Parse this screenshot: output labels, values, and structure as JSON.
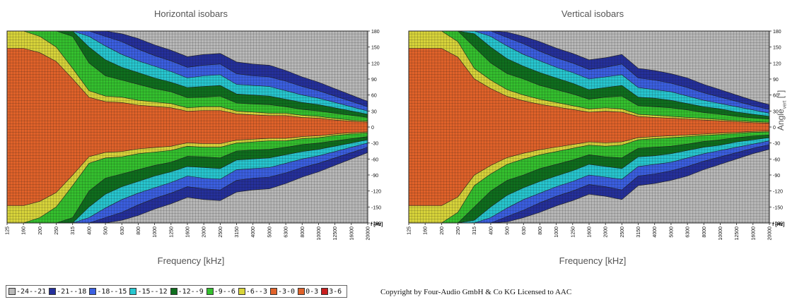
{
  "chart_data": [
    {
      "type": "heatmap",
      "title": "Horizontal isobars",
      "xlabel": "Frequency [kHz]",
      "x_unit_label": "f [Hz]",
      "x_ticks": [
        "125",
        "160",
        "200",
        "250",
        "315",
        "400",
        "500",
        "630",
        "800",
        "1000",
        "1250",
        "1600",
        "2000",
        "2500",
        "3150",
        "4000",
        "5000",
        "6300",
        "8000",
        "10000",
        "12500",
        "16000",
        "20000"
      ],
      "y_ticks": [
        "180",
        "150",
        "120",
        "90",
        "60",
        "30",
        "0",
        "-30",
        "-60",
        "-90",
        "-120",
        "-150",
        "-180"
      ],
      "ylim": [
        -180,
        180
      ],
      "beamwidth_deg": {
        "-3": [
          180,
          180,
          170,
          150,
          110,
          68,
          58,
          56,
          50,
          47,
          44,
          36,
          38,
          38,
          30,
          28,
          26,
          26,
          22,
          20,
          16,
          13,
          11
        ],
        "-6": [
          180,
          180,
          180,
          180,
          170,
          120,
          96,
          88,
          80,
          72,
          66,
          55,
          56,
          58,
          45,
          43,
          42,
          38,
          33,
          30,
          26,
          22,
          18
        ],
        "-9": [
          180,
          180,
          180,
          180,
          180,
          150,
          126,
          112,
          102,
          92,
          84,
          74,
          76,
          78,
          62,
          60,
          58,
          52,
          46,
          42,
          36,
          30,
          24
        ],
        "-12": [
          180,
          180,
          180,
          180,
          180,
          170,
          152,
          136,
          124,
          114,
          104,
          92,
          96,
          98,
          80,
          78,
          76,
          68,
          60,
          54,
          46,
          38,
          30
        ],
        "-15": [
          180,
          180,
          180,
          180,
          180,
          180,
          170,
          160,
          146,
          134,
          124,
          112,
          116,
          118,
          100,
          96,
          94,
          86,
          76,
          68,
          58,
          48,
          38
        ],
        "-18": [
          180,
          180,
          180,
          180,
          180,
          180,
          180,
          175,
          166,
          154,
          144,
          132,
          136,
          138,
          122,
          118,
          116,
          106,
          94,
          84,
          72,
          60,
          48
        ]
      }
    },
    {
      "type": "heatmap",
      "title": "Vertical isobars",
      "xlabel": "Frequency [kHz]",
      "x_unit_label": "f [Hz]",
      "x_ticks": [
        "125",
        "160",
        "200",
        "250",
        "315",
        "400",
        "500",
        "630",
        "800",
        "1000",
        "1250",
        "1600",
        "2000",
        "2500",
        "3150",
        "4000",
        "5000",
        "6300",
        "8000",
        "10000",
        "12500",
        "16000",
        "20000"
      ],
      "y_ticks": [
        "180",
        "150",
        "120",
        "90",
        "60",
        "30",
        "0",
        "-30",
        "-60",
        "-90",
        "-120",
        "-150",
        "-180"
      ],
      "ylim": [
        -180,
        180
      ],
      "y_axis_label": "Angle",
      "y_axis_label_sub": "vert",
      "y_axis_label_unit": "[°]",
      "beamwidth_deg": {
        "-3": [
          180,
          180,
          180,
          160,
          110,
          88,
          70,
          60,
          52,
          46,
          40,
          34,
          36,
          34,
          24,
          22,
          20,
          18,
          16,
          14,
          12,
          10,
          9
        ],
        "-6": [
          180,
          180,
          180,
          180,
          150,
          120,
          100,
          90,
          78,
          70,
          62,
          52,
          56,
          58,
          40,
          38,
          36,
          32,
          27,
          24,
          20,
          17,
          15
        ],
        "-9": [
          180,
          180,
          180,
          180,
          175,
          150,
          128,
          114,
          102,
          92,
          82,
          70,
          74,
          78,
          56,
          54,
          50,
          44,
          38,
          34,
          28,
          24,
          20
        ],
        "-12": [
          180,
          180,
          180,
          180,
          180,
          170,
          152,
          136,
          124,
          112,
          102,
          90,
          94,
          98,
          74,
          70,
          66,
          58,
          50,
          44,
          38,
          32,
          26
        ],
        "-15": [
          180,
          180,
          180,
          180,
          180,
          180,
          168,
          156,
          142,
          130,
          120,
          108,
          112,
          118,
          92,
          88,
          82,
          74,
          64,
          56,
          48,
          40,
          33
        ],
        "-18": [
          180,
          180,
          180,
          180,
          180,
          180,
          178,
          170,
          160,
          148,
          138,
          126,
          130,
          136,
          110,
          106,
          100,
          92,
          80,
          70,
          60,
          50,
          42
        ]
      }
    }
  ],
  "legend": {
    "items": [
      {
        "label": "-24--21",
        "color": "#b9b9b9"
      },
      {
        "label": "-21--18",
        "color": "#25309b"
      },
      {
        "label": "-18--15",
        "color": "#3b5fe0"
      },
      {
        "label": "-15--12",
        "color": "#27c6cf"
      },
      {
        "label": "-12--9",
        "color": "#0f6e1e"
      },
      {
        "label": "-9--6",
        "color": "#34c02e"
      },
      {
        "label": "-6--3",
        "color": "#d8d43a"
      },
      {
        "label": "-3-0",
        "color": "#e0622a"
      },
      {
        "label": "0-3",
        "color": "#e0622a"
      },
      {
        "label": "3-6",
        "color": "#c81e1e"
      }
    ]
  },
  "copyright": "Copyright by Four-Audio GmbH & Co KG   Licensed to AAC"
}
